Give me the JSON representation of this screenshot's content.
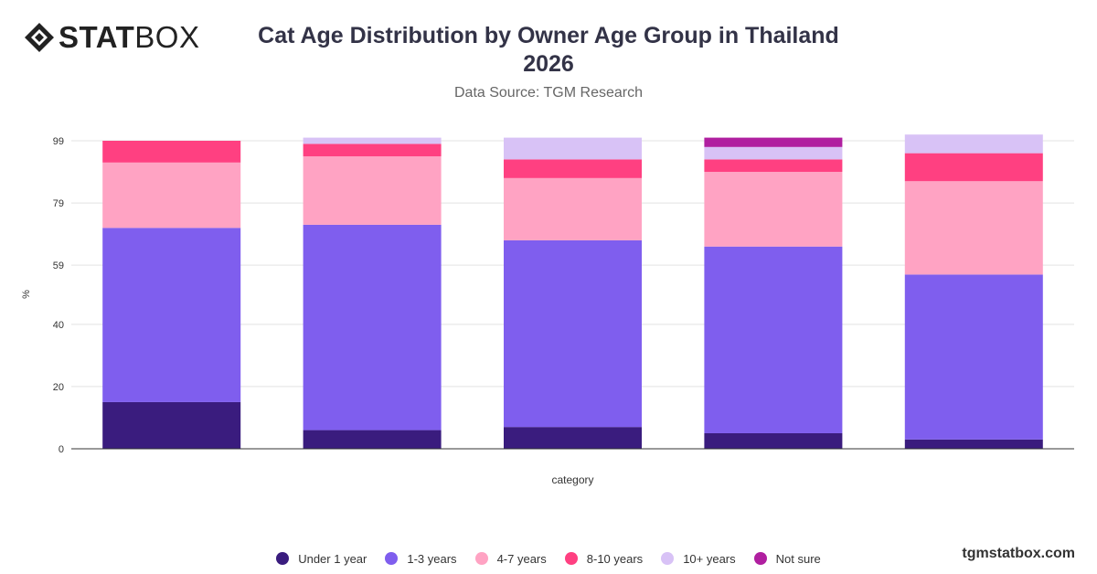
{
  "brand": {
    "logo_bold": "STAT",
    "logo_light": "BOX",
    "footer_text": "tgmstatbox.com"
  },
  "header": {
    "title_line1": "Cat Age Distribution by Owner Age Group in Thailand",
    "title_line2": "2026",
    "subtitle": "Data Source: TGM Research"
  },
  "chart_data": {
    "type": "bar",
    "stacked": true,
    "xlabel": "category",
    "ylabel": "%",
    "y_ticks": [
      0,
      20,
      40,
      59,
      79,
      99
    ],
    "ylim": [
      0,
      99
    ],
    "grid": true,
    "legend_position": "bottom",
    "categories": [
      "",
      "",
      "",
      "",
      ""
    ],
    "series": [
      {
        "name": "Under 1 year",
        "color": "#3a1c7e",
        "values": [
          15,
          6,
          7,
          5,
          3
        ]
      },
      {
        "name": "1-3 years",
        "color": "#7f5eee",
        "values": [
          56,
          66,
          60,
          60,
          53
        ]
      },
      {
        "name": "4-7 years",
        "color": "#ffa3c3",
        "values": [
          21,
          22,
          20,
          24,
          30
        ]
      },
      {
        "name": "8-10 years",
        "color": "#ff4081",
        "values": [
          7,
          4,
          6,
          4,
          9
        ]
      },
      {
        "name": "10+ years",
        "color": "#d8c2f6",
        "values": [
          0,
          2,
          7,
          4,
          6
        ]
      },
      {
        "name": "Not sure",
        "color": "#b01fa0",
        "values": [
          0,
          0,
          0,
          3,
          0
        ]
      }
    ]
  }
}
